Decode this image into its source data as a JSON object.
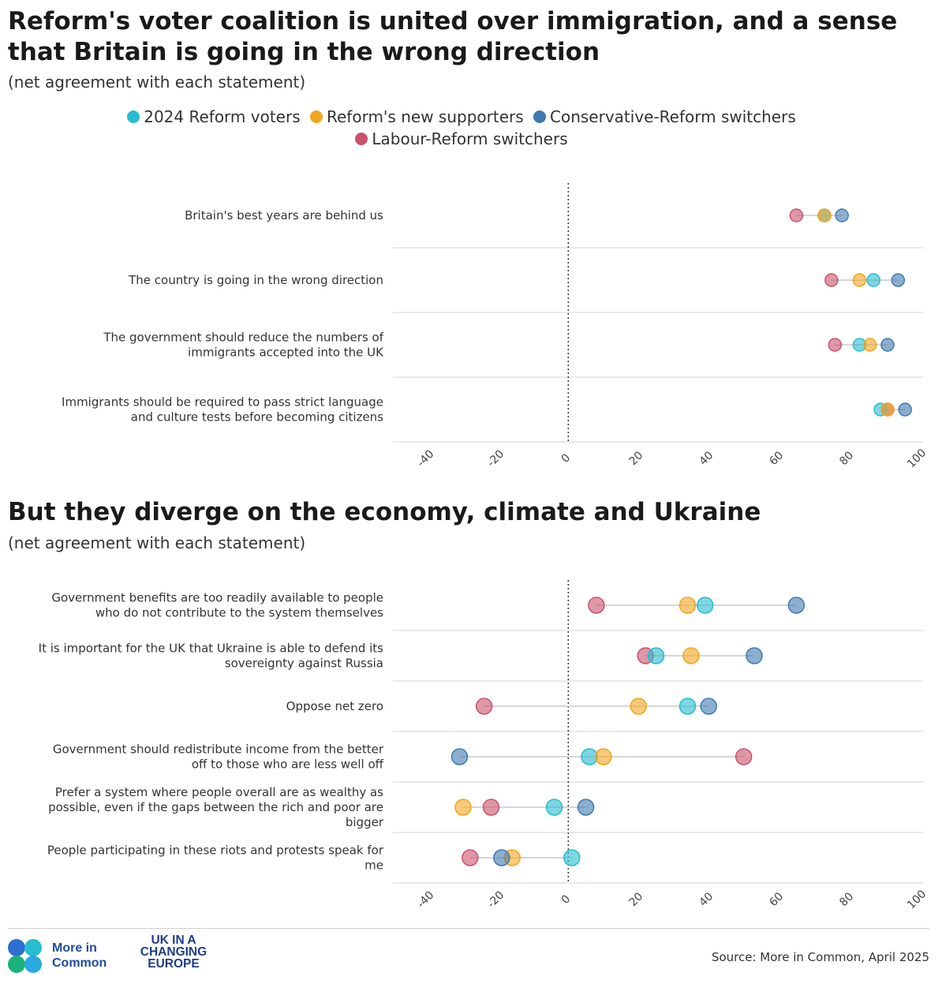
{
  "titles": {
    "top_title": "Reform's voter coalition is united over immigration, and a sense that Britain is going in the wrong direction",
    "top_subtitle": "(net agreement with each statement)",
    "bottom_title": "But they diverge on the economy, climate and Ukraine",
    "bottom_subtitle": "(net agreement with each statement)"
  },
  "legend": [
    {
      "label": "2024 Reform voters",
      "color": "#27bcd0"
    },
    {
      "label": "Reform's new supporters",
      "color": "#f2a51f"
    },
    {
      "label": "Conservative-Reform switchers",
      "color": "#3f7ab0"
    },
    {
      "label": "Labour-Reform switchers",
      "color": "#c9536c"
    }
  ],
  "chart_data": [
    {
      "type": "dot",
      "title": "Reform's voter coalition is united over immigration, and a sense that Britain is going in the wrong direction",
      "subtitle": "(net agreement with each statement)",
      "xlim": [
        -50,
        100
      ],
      "xticks": [
        "-40",
        "-20",
        "0",
        "20",
        "40",
        "60",
        "80",
        "100"
      ],
      "xtick_values": [
        -40,
        -20,
        0,
        20,
        40,
        60,
        80,
        100
      ],
      "categories": [
        [
          "Britain's best years are behind us"
        ],
        [
          "The country is going in the wrong direction"
        ],
        [
          "The government should reduce the numbers of",
          "immigrants accepted into the UK"
        ],
        [
          "Immigrants should be required to pass strict language",
          "and culture tests before becoming citizens"
        ]
      ],
      "series": [
        {
          "name": "2024 Reform voters",
          "values": [
            73,
            87,
            83,
            89
          ]
        },
        {
          "name": "Reform's new supporters",
          "values": [
            73,
            83,
            86,
            91
          ]
        },
        {
          "name": "Conservative-Reform switchers",
          "values": [
            78,
            94,
            91,
            96
          ]
        },
        {
          "name": "Labour-Reform switchers",
          "values": [
            65,
            75,
            76,
            91
          ]
        }
      ]
    },
    {
      "type": "dot",
      "title": "But they diverge on the economy, climate and Ukraine",
      "subtitle": "(net agreement with each statement)",
      "xlim": [
        -50,
        100
      ],
      "xticks": [
        "-40",
        "-20",
        "0",
        "20",
        "40",
        "60",
        "80",
        "100"
      ],
      "xtick_values": [
        -40,
        -20,
        0,
        20,
        40,
        60,
        80,
        100
      ],
      "categories": [
        [
          "Government benefits are too readily available to people",
          "who do not contribute to the system themselves"
        ],
        [
          "It is important for the UK that Ukraine is able to defend its",
          "sovereignty against Russia"
        ],
        [
          "Oppose net zero"
        ],
        [
          "Government should redistribute income from the better",
          "off to those who are less well off"
        ],
        [
          "Prefer a system where people overall are as wealthy as",
          "possible, even if the gaps between the rich and poor are",
          "bigger"
        ],
        [
          "People participating in these riots and protests speak for",
          "me"
        ]
      ],
      "series": [
        {
          "name": "2024 Reform voters",
          "values": [
            39,
            25,
            34,
            6,
            -4,
            1
          ]
        },
        {
          "name": "Reform's new supporters",
          "values": [
            34,
            35,
            20,
            10,
            -30,
            -16
          ]
        },
        {
          "name": "Conservative-Reform switchers",
          "values": [
            65,
            53,
            40,
            -31,
            5,
            -19
          ]
        },
        {
          "name": "Labour-Reform switchers",
          "values": [
            8,
            22,
            -24,
            50,
            -22,
            -28
          ]
        }
      ]
    }
  ],
  "footer": {
    "source": "Source: More in Common, April 2025",
    "logo1_line1": "More in",
    "logo1_line2": "Common",
    "logo2_line1": "UK IN A",
    "logo2_line2": "CHANGING",
    "logo2_line3": "EUROPE"
  }
}
